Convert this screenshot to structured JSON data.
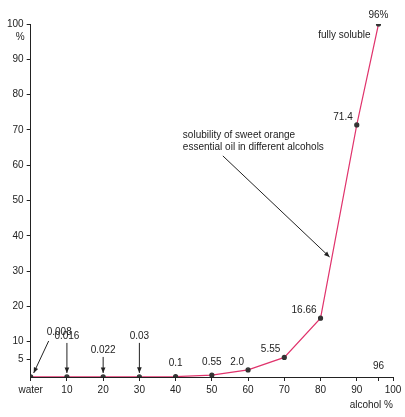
{
  "chart_data": {
    "type": "line",
    "x_label": "alcohol %",
    "y_label": "%",
    "x": [
      0,
      10,
      20,
      30,
      40,
      50,
      60,
      70,
      80,
      90,
      96
    ],
    "values": [
      0.008,
      0.016,
      0.022,
      0.03,
      0.1,
      0.55,
      2.0,
      5.55,
      16.66,
      71.4,
      100
    ],
    "value_labels": [
      "0.008",
      "0.016",
      "0.022",
      "0.03",
      "0.1",
      "0.55",
      "2.0",
      "5.55",
      "16.66",
      "71.4",
      null
    ],
    "annotations": [
      "fully soluble",
      "solubility of sweet orange essential oil in different alcohols",
      "96%"
    ],
    "color": "#e0336c",
    "marker": "circle",
    "line_style": "solid",
    "data_labels": true,
    "grid": false,
    "xlim": [
      0,
      100
    ],
    "xticks": [
      {
        "value": 0,
        "label": "water"
      },
      10,
      20,
      30,
      40,
      50,
      60,
      70,
      80,
      90,
      96,
      100
    ],
    "ylim": [
      0,
      100
    ],
    "yticks": [
      5,
      10,
      20,
      30,
      40,
      50,
      60,
      70,
      80,
      90,
      100
    ]
  }
}
